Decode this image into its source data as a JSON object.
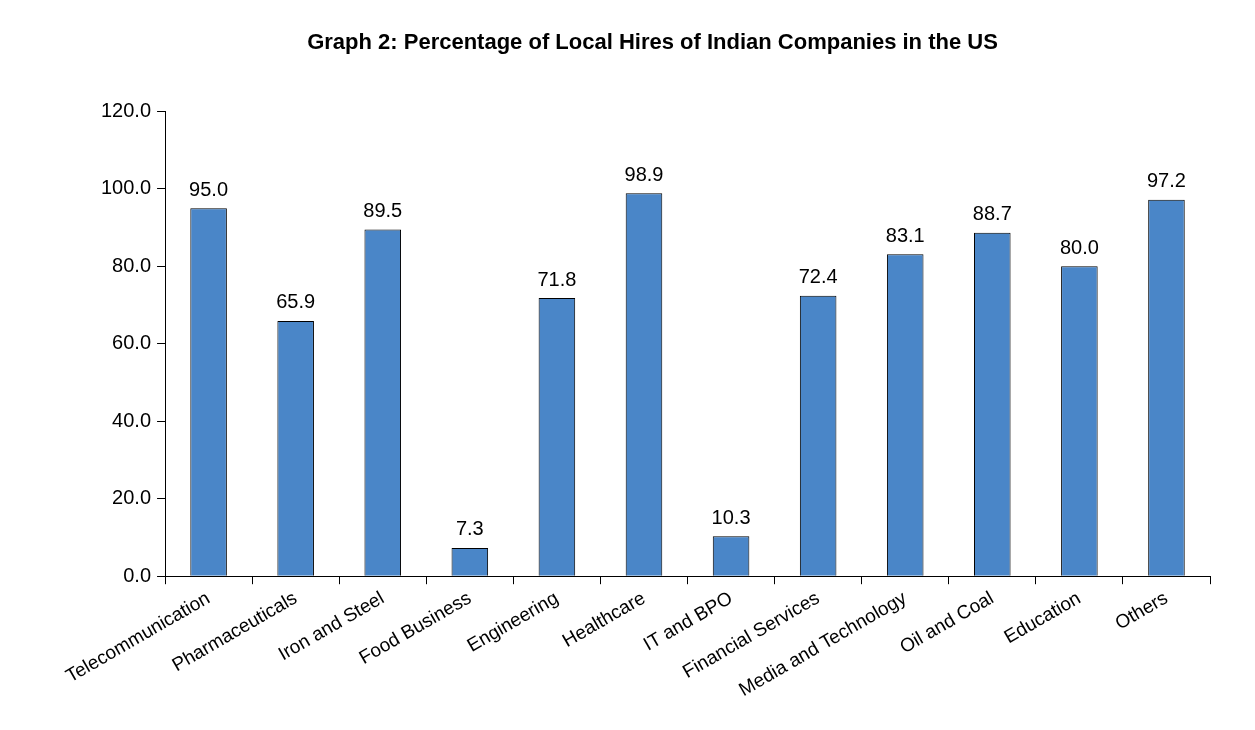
{
  "chart_data": {
    "type": "bar",
    "title": "Graph 2: Percentage of Local Hires of Indian Companies in the US",
    "categories": [
      "Telecommunication",
      "Pharmaceuticals",
      "Iron and Steel",
      "Food Business",
      "Engineering",
      "Healthcare",
      "IT and BPO",
      "Financial Services",
      "Media and Technology",
      "Oil and Coal",
      "Education",
      "Others"
    ],
    "values": [
      95.0,
      65.9,
      89.5,
      7.3,
      71.8,
      98.9,
      10.3,
      72.4,
      83.1,
      88.7,
      80.0,
      97.2
    ],
    "value_labels": [
      "95.0",
      "65.9",
      "89.5",
      "7.3",
      "71.8",
      "98.9",
      "10.3",
      "72.4",
      "83.1",
      "88.7",
      "80.0",
      "97.2"
    ],
    "color": "#4a86c8",
    "ylim": [
      0,
      120
    ],
    "yticks": [
      {
        "value": 0,
        "label": "0.0"
      },
      {
        "value": 20,
        "label": "20.0"
      },
      {
        "value": 40,
        "label": "40.0"
      },
      {
        "value": 60,
        "label": "60.0"
      },
      {
        "value": 80,
        "label": "80.0"
      },
      {
        "value": 100,
        "label": "100.0"
      },
      {
        "value": 120,
        "label": "120.0"
      }
    ],
    "grid": false,
    "legend": false
  }
}
